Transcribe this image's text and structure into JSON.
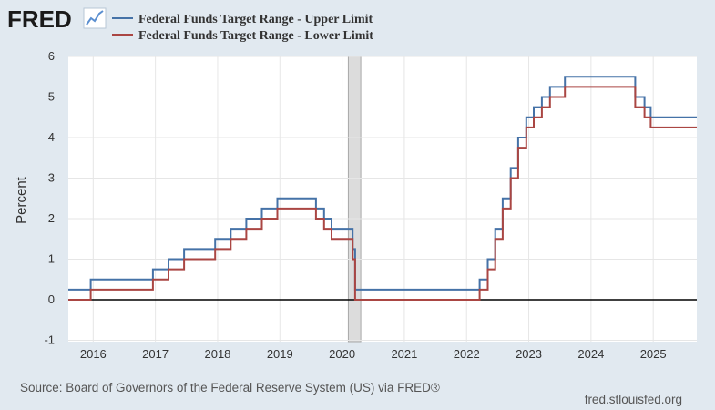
{
  "logo": {
    "text": "FRED"
  },
  "chart_data": {
    "type": "line",
    "ylabel": "Percent",
    "ylim": [
      -1,
      6
    ],
    "yticks": [
      "-1",
      "0",
      "1",
      "2",
      "3",
      "4",
      "5",
      "6"
    ],
    "xlim": [
      2015.6,
      2025.7
    ],
    "xticks": [
      "2016",
      "2017",
      "2018",
      "2019",
      "2020",
      "2021",
      "2022",
      "2023",
      "2024",
      "2025"
    ],
    "grid": true,
    "recession": [
      2020.1,
      2020.3
    ],
    "legend_position": "top-left",
    "series": [
      {
        "name": "Federal Funds Target Range - Upper Limit",
        "color": "#4572a7",
        "points": [
          [
            2015.6,
            0.25
          ],
          [
            2015.96,
            0.25
          ],
          [
            2015.96,
            0.5
          ],
          [
            2016.96,
            0.5
          ],
          [
            2016.96,
            0.75
          ],
          [
            2017.21,
            0.75
          ],
          [
            2017.21,
            1.0
          ],
          [
            2017.46,
            1.0
          ],
          [
            2017.46,
            1.25
          ],
          [
            2017.96,
            1.25
          ],
          [
            2017.96,
            1.5
          ],
          [
            2018.21,
            1.5
          ],
          [
            2018.21,
            1.75
          ],
          [
            2018.46,
            1.75
          ],
          [
            2018.46,
            2.0
          ],
          [
            2018.71,
            2.0
          ],
          [
            2018.71,
            2.25
          ],
          [
            2018.96,
            2.25
          ],
          [
            2018.96,
            2.5
          ],
          [
            2019.58,
            2.5
          ],
          [
            2019.58,
            2.25
          ],
          [
            2019.71,
            2.25
          ],
          [
            2019.71,
            2.0
          ],
          [
            2019.83,
            2.0
          ],
          [
            2019.83,
            1.75
          ],
          [
            2020.17,
            1.75
          ],
          [
            2020.17,
            1.25
          ],
          [
            2020.21,
            1.25
          ],
          [
            2020.21,
            0.25
          ],
          [
            2022.21,
            0.25
          ],
          [
            2022.21,
            0.5
          ],
          [
            2022.34,
            0.5
          ],
          [
            2022.34,
            1.0
          ],
          [
            2022.46,
            1.0
          ],
          [
            2022.46,
            1.75
          ],
          [
            2022.58,
            1.75
          ],
          [
            2022.58,
            2.5
          ],
          [
            2022.71,
            2.5
          ],
          [
            2022.71,
            3.25
          ],
          [
            2022.83,
            3.25
          ],
          [
            2022.83,
            4.0
          ],
          [
            2022.96,
            4.0
          ],
          [
            2022.96,
            4.5
          ],
          [
            2023.08,
            4.5
          ],
          [
            2023.08,
            4.75
          ],
          [
            2023.21,
            4.75
          ],
          [
            2023.21,
            5.0
          ],
          [
            2023.34,
            5.0
          ],
          [
            2023.34,
            5.25
          ],
          [
            2023.58,
            5.25
          ],
          [
            2023.58,
            5.5
          ],
          [
            2024.71,
            5.5
          ],
          [
            2024.71,
            5.0
          ],
          [
            2024.86,
            5.0
          ],
          [
            2024.86,
            4.75
          ],
          [
            2024.96,
            4.75
          ],
          [
            2024.96,
            4.5
          ],
          [
            2025.7,
            4.5
          ]
        ]
      },
      {
        "name": "Federal Funds Target Range - Lower Limit",
        "color": "#aa4643",
        "points": [
          [
            2015.6,
            0.0
          ],
          [
            2015.96,
            0.0
          ],
          [
            2015.96,
            0.25
          ],
          [
            2016.96,
            0.25
          ],
          [
            2016.96,
            0.5
          ],
          [
            2017.21,
            0.5
          ],
          [
            2017.21,
            0.75
          ],
          [
            2017.46,
            0.75
          ],
          [
            2017.46,
            1.0
          ],
          [
            2017.96,
            1.0
          ],
          [
            2017.96,
            1.25
          ],
          [
            2018.21,
            1.25
          ],
          [
            2018.21,
            1.5
          ],
          [
            2018.46,
            1.5
          ],
          [
            2018.46,
            1.75
          ],
          [
            2018.71,
            1.75
          ],
          [
            2018.71,
            2.0
          ],
          [
            2018.96,
            2.0
          ],
          [
            2018.96,
            2.25
          ],
          [
            2019.58,
            2.25
          ],
          [
            2019.58,
            2.0
          ],
          [
            2019.71,
            2.0
          ],
          [
            2019.71,
            1.75
          ],
          [
            2019.83,
            1.75
          ],
          [
            2019.83,
            1.5
          ],
          [
            2020.17,
            1.5
          ],
          [
            2020.17,
            1.0
          ],
          [
            2020.21,
            1.0
          ],
          [
            2020.21,
            0.0
          ],
          [
            2022.21,
            0.0
          ],
          [
            2022.21,
            0.25
          ],
          [
            2022.34,
            0.25
          ],
          [
            2022.34,
            0.75
          ],
          [
            2022.46,
            0.75
          ],
          [
            2022.46,
            1.5
          ],
          [
            2022.58,
            1.5
          ],
          [
            2022.58,
            2.25
          ],
          [
            2022.71,
            2.25
          ],
          [
            2022.71,
            3.0
          ],
          [
            2022.83,
            3.0
          ],
          [
            2022.83,
            3.75
          ],
          [
            2022.96,
            3.75
          ],
          [
            2022.96,
            4.25
          ],
          [
            2023.08,
            4.25
          ],
          [
            2023.08,
            4.5
          ],
          [
            2023.21,
            4.5
          ],
          [
            2023.21,
            4.75
          ],
          [
            2023.34,
            4.75
          ],
          [
            2023.34,
            5.0
          ],
          [
            2023.58,
            5.0
          ],
          [
            2023.58,
            5.25
          ],
          [
            2024.71,
            5.25
          ],
          [
            2024.71,
            4.75
          ],
          [
            2024.86,
            4.75
          ],
          [
            2024.86,
            4.5
          ],
          [
            2024.96,
            4.5
          ],
          [
            2024.96,
            4.25
          ],
          [
            2025.7,
            4.25
          ]
        ]
      }
    ]
  },
  "footer": {
    "source": "Source: Board of Governors of the Federal Reserve System (US) via FRED®",
    "url": "fred.stlouisfed.org"
  }
}
